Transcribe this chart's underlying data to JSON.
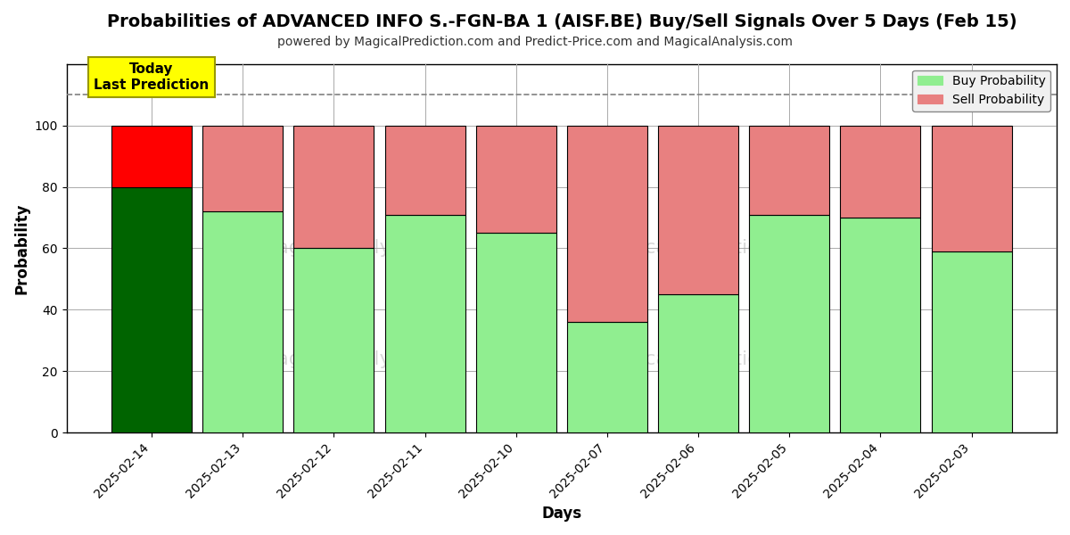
{
  "title": "Probabilities of ADVANCED INFO S.-FGN-BA 1 (AISF.BE) Buy/Sell Signals Over 5 Days (Feb 15)",
  "subtitle": "powered by MagicalPrediction.com and Predict-Price.com and MagicalAnalysis.com",
  "xlabel": "Days",
  "ylabel": "Probability",
  "dates": [
    "2025-02-14",
    "2025-02-13",
    "2025-02-12",
    "2025-02-11",
    "2025-02-10",
    "2025-02-07",
    "2025-02-06",
    "2025-02-05",
    "2025-02-04",
    "2025-02-03"
  ],
  "buy_values": [
    80,
    72,
    60,
    71,
    65,
    36,
    45,
    71,
    70,
    59
  ],
  "sell_values": [
    20,
    28,
    40,
    29,
    35,
    64,
    55,
    29,
    30,
    41
  ],
  "buy_colors": [
    "#006400",
    "#90EE90",
    "#90EE90",
    "#90EE90",
    "#90EE90",
    "#90EE90",
    "#90EE90",
    "#90EE90",
    "#90EE90",
    "#90EE90"
  ],
  "sell_colors": [
    "#FF0000",
    "#E88080",
    "#E88080",
    "#E88080",
    "#E88080",
    "#E88080",
    "#E88080",
    "#E88080",
    "#E88080",
    "#E88080"
  ],
  "today_label": "Today\nLast Prediction",
  "today_label_bg": "#FFFF00",
  "legend_buy_color": "#90EE90",
  "legend_sell_color": "#E88080",
  "legend_buy_label": "Buy Probability",
  "legend_sell_label": "Sell Probability",
  "ylim": [
    0,
    120
  ],
  "yticks": [
    0,
    20,
    40,
    60,
    80,
    100
  ],
  "dashed_line_y": 110,
  "figsize": [
    12,
    6
  ],
  "dpi": 100,
  "bg_color": "#FFFFFF",
  "grid_color": "#AAAAAA",
  "bar_edge_color": "#000000",
  "title_fontsize": 14,
  "subtitle_fontsize": 10,
  "label_fontsize": 12,
  "bar_width": 0.88
}
